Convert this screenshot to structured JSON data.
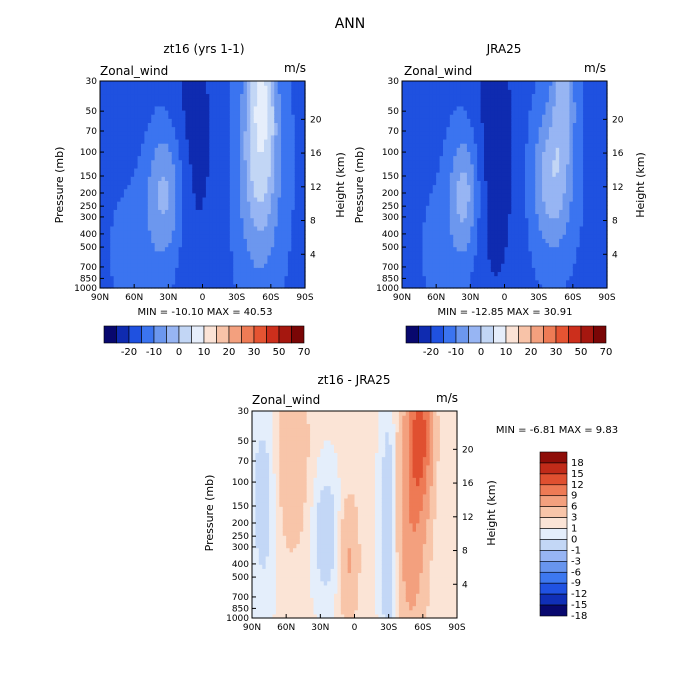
{
  "title": "ANN",
  "colors": {
    "sequential": [
      "#08086e",
      "#0f2bb0",
      "#1f51e0",
      "#3b74f0",
      "#6c97ee",
      "#97b5f3",
      "#c2d6f5",
      "#e6eefb",
      "#fbe3d6",
      "#f8c3a8",
      "#f3a07e",
      "#ee7b55",
      "#e55432",
      "#cc2f1c",
      "#a5170f",
      "#7a0606"
    ],
    "diff": [
      "#08086e",
      "#102fb7",
      "#2052e2",
      "#3d78f0",
      "#6895ee",
      "#97b5f4",
      "#c3d7f6",
      "#e4eefb",
      "#fbe4d6",
      "#f8c5a9",
      "#f3a07e",
      "#ee7a55",
      "#e05030",
      "#c12b19",
      "#8e0d08"
    ]
  },
  "chart_data": [
    {
      "type": "contour",
      "panel_title": "zt16 (yrs 1-1)",
      "left_label": "Zonal_wind",
      "units": "m/s",
      "xlabel": "",
      "ylabel": "Pressure (mb)",
      "ylabel_right": "Height (km)",
      "x_ticks": [
        "90N",
        "60N",
        "30N",
        "0",
        "30S",
        "60S",
        "90S"
      ],
      "y_ticks": [
        "30",
        "50",
        "70",
        "100",
        "150",
        "200",
        "250",
        "300",
        "400",
        "500",
        "700",
        "850",
        "1000"
      ],
      "y2_ticks": [
        "20",
        "16",
        "12",
        "8",
        "4"
      ],
      "min": "-10.10",
      "max": "40.53",
      "stats_text": "MIN = -10.10   MAX = 40.53",
      "levels": [
        -20,
        -10,
        0,
        10,
        20,
        30,
        50,
        70
      ],
      "colorbar_labels": [
        "-20",
        "-10",
        "0",
        "10",
        "20",
        "30",
        "50",
        "70"
      ],
      "pattern": "model"
    },
    {
      "type": "contour",
      "panel_title": "JRA25",
      "left_label": "Zonal_wind",
      "units": "m/s",
      "xlabel": "",
      "ylabel": "Pressure (mb)",
      "ylabel_right": "Height (km)",
      "x_ticks": [
        "90N",
        "60N",
        "30N",
        "0",
        "30S",
        "60S",
        "90S"
      ],
      "y_ticks": [
        "30",
        "50",
        "70",
        "100",
        "150",
        "200",
        "250",
        "300",
        "400",
        "500",
        "700",
        "850",
        "1000"
      ],
      "y2_ticks": [
        "20",
        "16",
        "12",
        "8",
        "4"
      ],
      "min": "-12.85",
      "max": "30.91",
      "stats_text": "MIN = -12.85   MAX = 30.91",
      "levels": [
        -20,
        -10,
        0,
        10,
        20,
        30,
        50,
        70
      ],
      "colorbar_labels": [
        "-20",
        "-10",
        "0",
        "10",
        "20",
        "30",
        "50",
        "70"
      ],
      "pattern": "obs"
    },
    {
      "type": "contour",
      "panel_title": "zt16 - JRA25",
      "left_label": "Zonal_wind",
      "units": "m/s",
      "xlabel": "",
      "ylabel": "Pressure (mb)",
      "ylabel_right": "Height (km)",
      "x_ticks": [
        "90N",
        "60N",
        "30N",
        "0",
        "30S",
        "60S",
        "90S"
      ],
      "y_ticks": [
        "30",
        "50",
        "70",
        "100",
        "150",
        "200",
        "250",
        "300",
        "400",
        "500",
        "700",
        "850",
        "1000"
      ],
      "y2_ticks": [
        "20",
        "16",
        "12",
        "8",
        "4"
      ],
      "min": "-6.81",
      "max": "9.83",
      "stats_text": "MIN =   -6.81   MAX =    9.83",
      "levels": [
        -18,
        -15,
        -12,
        -9,
        -6,
        -3,
        -1,
        0,
        1,
        3,
        6,
        9,
        12,
        15,
        18
      ],
      "colorbar_labels": [
        "18",
        "15",
        "12",
        "9",
        "6",
        "3",
        "1",
        "0",
        "-1",
        "-3",
        "-6",
        "-9",
        "-12",
        "-15",
        "-18"
      ],
      "pattern": "diff"
    }
  ]
}
